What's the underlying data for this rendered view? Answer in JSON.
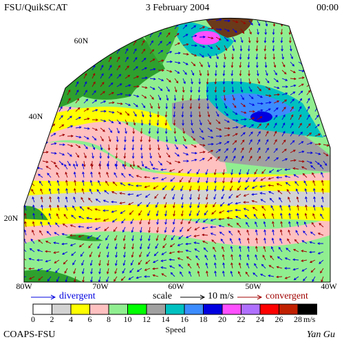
{
  "header": {
    "source": "FSU/QuikSCAT",
    "date": "3 February 2004",
    "time": "00:00"
  },
  "map": {
    "lat_labels": [
      "60N",
      "40N",
      "20N"
    ],
    "lon_labels": [
      "80W",
      "70W",
      "60W",
      "50W",
      "40W"
    ]
  },
  "legend": {
    "divergent": "divergent",
    "scale": "scale",
    "scale_value": "10 m/s",
    "convergent": "convergent"
  },
  "colorbar": {
    "ticks": [
      "0",
      "2",
      "4",
      "6",
      "8",
      "10",
      "12",
      "14",
      "16",
      "18",
      "20",
      "22",
      "24",
      "26",
      "28"
    ],
    "colors": [
      "#ffffff",
      "#d3d3d3",
      "#ffff00",
      "#ffc0c0",
      "#90ee90",
      "#00ff00",
      "#a0a0a0",
      "#00c0c0",
      "#3c8cff",
      "#0000e0",
      "#ff50ff",
      "#b070ff",
      "#ff0000",
      "#c02000",
      "#000000"
    ],
    "unit": "m/s",
    "label": "Speed"
  },
  "footer": {
    "left": "COAPS-FSU",
    "right": "Yan Gu"
  }
}
